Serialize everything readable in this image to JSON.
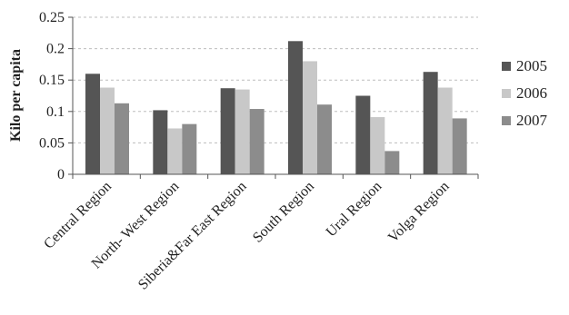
{
  "chart_data": {
    "type": "bar",
    "ylabel": "Kilo per capita",
    "xlabel": "",
    "ylim": [
      0,
      0.25
    ],
    "yticks": [
      0,
      0.05,
      0.1,
      0.15,
      0.2,
      0.25
    ],
    "ytick_labels": [
      "0",
      "0.05",
      "0.1",
      "0.15",
      "0.2",
      "0.25"
    ],
    "grid": true,
    "legend_position": "right",
    "categories": [
      "Central Region",
      "North- West Region",
      "Siberia&Far East Region",
      "South Region",
      "Ural Region",
      "Volga Region"
    ],
    "series": [
      {
        "name": "2005",
        "color": "#555555",
        "values": [
          0.16,
          0.102,
          0.137,
          0.212,
          0.125,
          0.163
        ]
      },
      {
        "name": "2006",
        "color": "#c8c8c8",
        "values": [
          0.138,
          0.073,
          0.135,
          0.18,
          0.091,
          0.138
        ]
      },
      {
        "name": "2007",
        "color": "#8c8c8c",
        "values": [
          0.113,
          0.08,
          0.104,
          0.111,
          0.037,
          0.089
        ]
      }
    ]
  }
}
